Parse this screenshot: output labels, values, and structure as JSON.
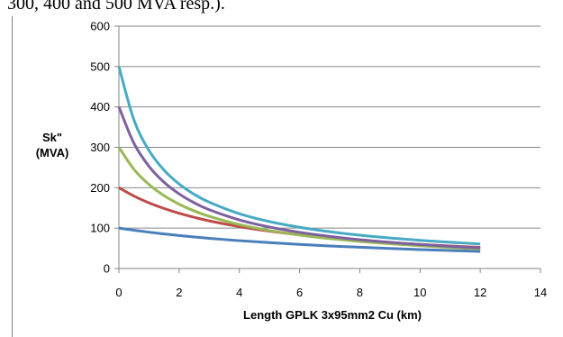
{
  "caption": {
    "text": "300, 400 and 500 MVA resp.)."
  },
  "chart_data": {
    "type": "line",
    "title": "",
    "xlabel": "Length GPLK 3x95mm2 Cu (km)",
    "ylabel_lines": [
      "Sk\"",
      "(MVA)"
    ],
    "xlim": [
      0,
      14
    ],
    "ylim": [
      0,
      600
    ],
    "xticks": [
      0,
      2,
      4,
      6,
      8,
      10,
      12,
      14
    ],
    "yticks": [
      0,
      100,
      200,
      300,
      400,
      500,
      600
    ],
    "grid": "horizontal",
    "legend": "none",
    "x": [
      0,
      0.5,
      1,
      1.5,
      2,
      2.5,
      3,
      4,
      5,
      6,
      7,
      8,
      9,
      10,
      11,
      12
    ],
    "series": [
      {
        "color": "#4a7ebb",
        "values": [
          100,
          94.7,
          89.9,
          85.6,
          81.7,
          78.1,
          74.8,
          69.0,
          64.1,
          59.7,
          55.9,
          52.6,
          49.6,
          46.9,
          44.5,
          42.3
        ]
      },
      {
        "color": "#be4b48",
        "values": [
          200,
          179.4,
          162.5,
          148.6,
          136.7,
          126.7,
          118.0,
          103.7,
          92.5,
          83.4,
          75.9,
          69.6,
          64.3,
          59.7,
          55.8,
          52.3
        ]
      },
      {
        "color": "#98b954",
        "values": [
          300,
          245.6,
          207.9,
          180.3,
          159.2,
          142.6,
          129.2,
          108.8,
          94.1,
          82.9,
          74.1,
          67.0,
          61.2,
          56.3,
          52.1,
          48.5
        ]
      },
      {
        "color": "#7d60a0",
        "values": [
          400,
          309.8,
          252.8,
          213.5,
          184.7,
          162.8,
          145.6,
          120.4,
          102.7,
          89.6,
          79.5,
          71.4,
          64.9,
          59.4,
          54.8,
          50.9
        ]
      },
      {
        "color": "#46aac5",
        "values": [
          500,
          367.6,
          292.2,
          243.4,
          209.2,
          183.7,
          164.1,
          135.7,
          116.2,
          102.0,
          91.1,
          82.5,
          75.6,
          69.8,
          65.0,
          60.9
        ]
      }
    ]
  }
}
